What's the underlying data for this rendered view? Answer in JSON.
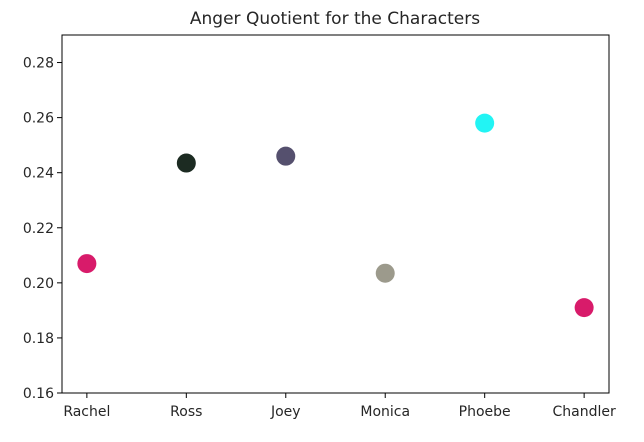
{
  "chart_data": {
    "type": "scatter",
    "title": "Anger Quotient for the Characters",
    "xlabel": "",
    "ylabel": "",
    "categories": [
      "Rachel",
      "Ross",
      "Joey",
      "Monica",
      "Phoebe",
      "Chandler"
    ],
    "values": [
      0.207,
      0.2435,
      0.246,
      0.2035,
      0.258,
      0.191
    ],
    "colors": [
      "#d81b6a",
      "#1c2b22",
      "#55506e",
      "#9c9a8c",
      "#22f4f4",
      "#d81b6a"
    ],
    "ylim": [
      0.16,
      0.29
    ],
    "yticks": [
      "0.16",
      "0.18",
      "0.20",
      "0.22",
      "0.24",
      "0.26",
      "0.28"
    ],
    "grid": false,
    "legend": "none"
  }
}
